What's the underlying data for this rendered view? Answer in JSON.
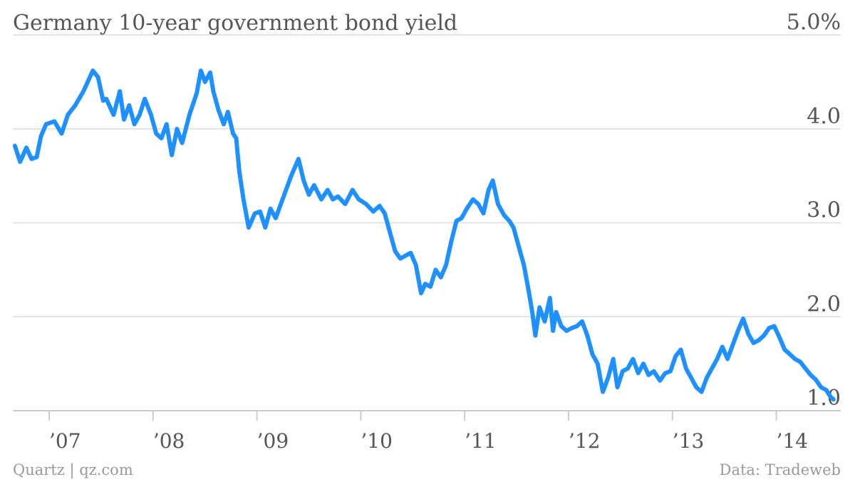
{
  "chart_data": {
    "type": "line",
    "title": "Germany 10-year government bond yield",
    "ylim": [
      1.0,
      5.0
    ],
    "y_ticks": [
      1.0,
      2.0,
      3.0,
      4.0,
      5.0
    ],
    "y_tick_labels": [
      "1.0",
      "2.0",
      "3.0",
      "4.0",
      "5.0%"
    ],
    "x_ticks": [
      2007,
      2008,
      2009,
      2010,
      2011,
      2012,
      2013,
      2014
    ],
    "x_tick_labels": [
      "’07",
      "’08",
      "’09",
      "’10",
      "’11",
      "’12",
      "’13",
      "’14"
    ],
    "xlim": [
      2006.65,
      2014.62
    ],
    "grid": true,
    "series_color": "#1e90ff",
    "series": [
      {
        "x": [
          2006.67,
          2006.72,
          2006.78,
          2006.83,
          2006.88,
          2006.92,
          2006.97,
          2007.05,
          2007.12,
          2007.18,
          2007.25,
          2007.33,
          2007.42,
          2007.47,
          2007.52,
          2007.55,
          2007.62,
          2007.68,
          2007.72,
          2007.77,
          2007.82,
          2007.87,
          2007.92,
          2007.98,
          2008.03,
          2008.08,
          2008.13,
          2008.18,
          2008.23,
          2008.28,
          2008.35,
          2008.42,
          2008.46,
          2008.5,
          2008.55,
          2008.58,
          2008.63,
          2008.68,
          2008.72,
          2008.77,
          2008.8,
          2008.83,
          2008.87,
          2008.92,
          2008.98,
          2009.03,
          2009.08,
          2009.13,
          2009.18,
          2009.23,
          2009.28,
          2009.33,
          2009.4,
          2009.45,
          2009.5,
          2009.55,
          2009.62,
          2009.68,
          2009.73,
          2009.78,
          2009.85,
          2009.92,
          2009.98,
          2010.05,
          2010.12,
          2010.18,
          2010.23,
          2010.28,
          2010.33,
          2010.38,
          2010.43,
          2010.48,
          2010.53,
          2010.58,
          2010.62,
          2010.67,
          2010.72,
          2010.77,
          2010.82,
          2010.87,
          2010.92,
          2010.97,
          2011.02,
          2011.08,
          2011.13,
          2011.18,
          2011.23,
          2011.27,
          2011.32,
          2011.38,
          2011.43,
          2011.47,
          2011.52,
          2011.57,
          2011.62,
          2011.65,
          2011.68,
          2011.72,
          2011.77,
          2011.82,
          2011.85,
          2011.88,
          2011.93,
          2011.98,
          2012.03,
          2012.08,
          2012.13,
          2012.18,
          2012.23,
          2012.28,
          2012.33,
          2012.38,
          2012.43,
          2012.47,
          2012.52,
          2012.57,
          2012.62,
          2012.67,
          2012.72,
          2012.77,
          2012.82,
          2012.88,
          2012.93,
          2012.98,
          2013.03,
          2013.08,
          2013.13,
          2013.18,
          2013.23,
          2013.28,
          2013.33,
          2013.38,
          2013.43,
          2013.48,
          2013.53,
          2013.58,
          2013.63,
          2013.68,
          2013.73,
          2013.78,
          2013.83,
          2013.88,
          2013.93,
          2013.98,
          2014.03,
          2014.08,
          2014.13,
          2014.18,
          2014.23,
          2014.28,
          2014.33,
          2014.38,
          2014.43,
          2014.48,
          2014.52,
          2014.55
        ],
        "values": [
          3.82,
          3.65,
          3.8,
          3.68,
          3.7,
          3.92,
          4.05,
          4.08,
          3.95,
          4.15,
          4.25,
          4.4,
          4.62,
          4.55,
          4.3,
          4.32,
          4.15,
          4.4,
          4.1,
          4.25,
          4.05,
          4.15,
          4.32,
          4.15,
          3.95,
          3.9,
          4.05,
          3.72,
          4.0,
          3.85,
          4.15,
          4.38,
          4.62,
          4.5,
          4.6,
          4.4,
          4.2,
          4.05,
          4.18,
          3.95,
          3.9,
          3.55,
          3.25,
          2.95,
          3.1,
          3.12,
          2.95,
          3.15,
          3.05,
          3.2,
          3.35,
          3.5,
          3.68,
          3.45,
          3.3,
          3.4,
          3.25,
          3.35,
          3.25,
          3.28,
          3.2,
          3.35,
          3.25,
          3.2,
          3.12,
          3.18,
          3.1,
          2.9,
          2.7,
          2.62,
          2.65,
          2.68,
          2.55,
          2.25,
          2.35,
          2.32,
          2.5,
          2.42,
          2.55,
          2.8,
          3.02,
          3.05,
          3.15,
          3.25,
          3.2,
          3.1,
          3.35,
          3.45,
          3.2,
          3.08,
          3.02,
          2.95,
          2.75,
          2.55,
          2.25,
          2.05,
          1.8,
          2.1,
          1.95,
          2.2,
          1.85,
          2.05,
          1.9,
          1.85,
          1.88,
          1.9,
          1.95,
          1.8,
          1.6,
          1.5,
          1.2,
          1.35,
          1.55,
          1.25,
          1.42,
          1.45,
          1.55,
          1.4,
          1.5,
          1.38,
          1.42,
          1.32,
          1.4,
          1.42,
          1.58,
          1.65,
          1.45,
          1.35,
          1.25,
          1.2,
          1.35,
          1.45,
          1.55,
          1.68,
          1.55,
          1.7,
          1.85,
          1.98,
          1.82,
          1.72,
          1.75,
          1.8,
          1.88,
          1.9,
          1.78,
          1.65,
          1.6,
          1.55,
          1.52,
          1.45,
          1.38,
          1.33,
          1.25,
          1.22,
          1.15,
          1.12
        ]
      }
    ]
  },
  "footer": {
    "source_left": "Quartz | qz.com",
    "source_right": "Data: Tradeweb"
  }
}
